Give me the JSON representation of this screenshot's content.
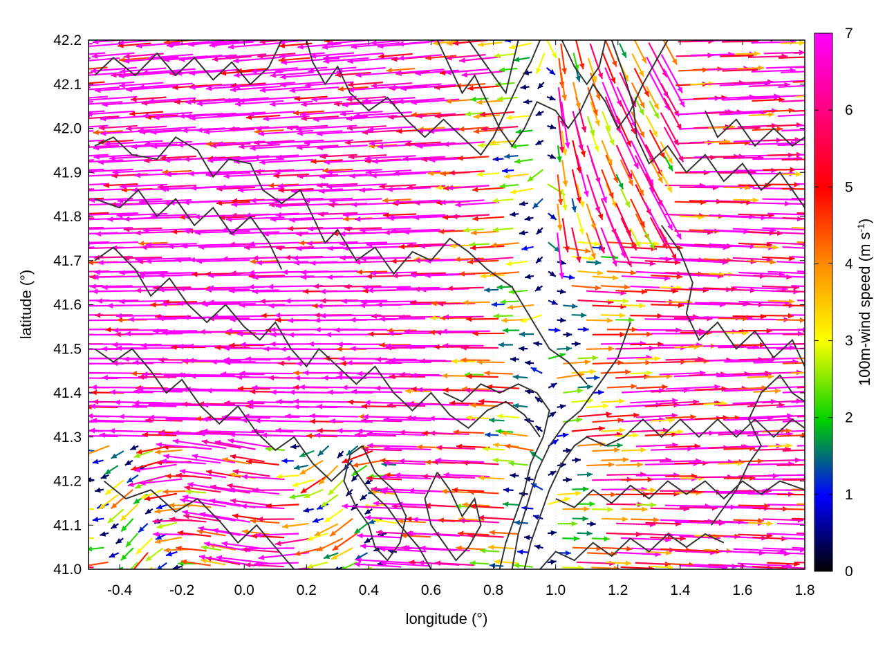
{
  "chart_data": {
    "type": "vector-field",
    "xlabel": "longitude (°)",
    "ylabel": "latitude (°)",
    "xlim": [
      -0.5,
      1.8
    ],
    "ylim": [
      41.0,
      42.2
    ],
    "xticks": [
      "-0.4",
      "-0.2",
      "0.0",
      "0.2",
      "0.4",
      "0.6",
      "0.8",
      "1.0",
      "1.2",
      "1.4",
      "1.6",
      "1.8"
    ],
    "xtick_values": [
      -0.4,
      -0.2,
      0.0,
      0.2,
      0.4,
      0.6,
      0.8,
      1.0,
      1.2,
      1.4,
      1.6,
      1.8
    ],
    "yticks": [
      "41.0",
      "41.1",
      "41.2",
      "41.3",
      "41.4",
      "41.5",
      "41.6",
      "41.7",
      "41.8",
      "41.9",
      "42.0",
      "42.1",
      "42.2"
    ],
    "ytick_values": [
      41.0,
      41.1,
      41.2,
      41.3,
      41.4,
      41.5,
      41.6,
      41.7,
      41.8,
      41.9,
      42.0,
      42.1,
      42.2
    ],
    "grid": true,
    "colorbar": {
      "label_main": "100m-wind speed (m s",
      "label_sup": "-1",
      "label_end": ")",
      "range": [
        0,
        7
      ],
      "ticks": [
        "0",
        "1",
        "2",
        "3",
        "4",
        "5",
        "6",
        "7"
      ],
      "tick_values": [
        0,
        1,
        2,
        3,
        4,
        5,
        6,
        7
      ],
      "colors": [
        "#000000",
        "#0000ff",
        "#00d000",
        "#ffff00",
        "#ff8c00",
        "#ff0000",
        "#ff00ff"
      ]
    },
    "contours": {
      "color": "#333333",
      "paths": [
        [
          [
            -0.48,
            41.96
          ],
          [
            -0.42,
            41.98
          ],
          [
            -0.36,
            41.94
          ],
          [
            -0.28,
            41.93
          ],
          [
            -0.22,
            41.98
          ],
          [
            -0.15,
            41.95
          ],
          [
            -0.1,
            41.89
          ],
          [
            -0.05,
            41.93
          ],
          [
            0.02,
            41.92
          ],
          [
            0.06,
            41.86
          ],
          [
            0.12,
            41.83
          ],
          [
            0.18,
            41.86
          ],
          [
            0.22,
            41.8
          ],
          [
            0.26,
            41.74
          ],
          [
            0.3,
            41.77
          ],
          [
            0.36,
            41.7
          ],
          [
            0.42,
            41.73
          ],
          [
            0.48,
            41.67
          ],
          [
            0.54,
            41.72
          ],
          [
            0.6,
            41.7
          ],
          [
            0.66,
            41.75
          ],
          [
            0.72,
            41.72
          ],
          [
            0.78,
            41.68
          ],
          [
            0.86,
            41.64
          ],
          [
            0.92,
            41.57
          ],
          [
            0.98,
            41.5
          ],
          [
            1.04,
            41.47
          ],
          [
            1.1,
            41.42
          ]
        ],
        [
          [
            -0.48,
            41.7
          ],
          [
            -0.42,
            41.73
          ],
          [
            -0.35,
            41.68
          ],
          [
            -0.3,
            41.62
          ],
          [
            -0.24,
            41.66
          ],
          [
            -0.18,
            41.6
          ],
          [
            -0.12,
            41.56
          ],
          [
            -0.06,
            41.6
          ],
          [
            0.0,
            41.55
          ],
          [
            0.05,
            41.52
          ],
          [
            0.1,
            41.56
          ],
          [
            0.15,
            41.5
          ],
          [
            0.2,
            41.46
          ],
          [
            0.24,
            41.5
          ],
          [
            0.3,
            41.46
          ],
          [
            0.36,
            41.42
          ],
          [
            0.42,
            41.46
          ],
          [
            0.48,
            41.4
          ],
          [
            0.54,
            41.36
          ],
          [
            0.6,
            41.4
          ],
          [
            0.66,
            41.35
          ],
          [
            0.72,
            41.32
          ],
          [
            0.78,
            41.36
          ],
          [
            0.84,
            41.38
          ],
          [
            0.9,
            41.35
          ],
          [
            0.95,
            41.3
          ]
        ],
        [
          [
            -0.48,
            41.5
          ],
          [
            -0.42,
            41.47
          ],
          [
            -0.36,
            41.5
          ],
          [
            -0.3,
            41.45
          ],
          [
            -0.25,
            41.4
          ],
          [
            -0.2,
            41.43
          ],
          [
            -0.14,
            41.37
          ],
          [
            -0.08,
            41.33
          ],
          [
            -0.02,
            41.37
          ],
          [
            0.04,
            41.31
          ],
          [
            0.1,
            41.27
          ],
          [
            0.16,
            41.3
          ],
          [
            0.22,
            41.24
          ],
          [
            0.28,
            41.2
          ],
          [
            0.34,
            41.24
          ],
          [
            0.4,
            41.18
          ],
          [
            0.46,
            41.14
          ],
          [
            0.5,
            41.1
          ],
          [
            0.56,
            41.05
          ],
          [
            0.6,
            41.0
          ]
        ],
        [
          [
            -0.45,
            41.2
          ],
          [
            -0.38,
            41.16
          ],
          [
            -0.3,
            41.18
          ],
          [
            -0.22,
            41.13
          ],
          [
            -0.15,
            41.16
          ],
          [
            -0.08,
            41.11
          ],
          [
            -0.02,
            41.06
          ],
          [
            0.04,
            41.1
          ],
          [
            0.1,
            41.05
          ],
          [
            0.16,
            41.0
          ]
        ],
        [
          [
            0.2,
            42.2
          ],
          [
            0.22,
            42.15
          ],
          [
            0.26,
            42.1
          ],
          [
            0.3,
            42.14
          ],
          [
            0.34,
            42.08
          ],
          [
            0.4,
            42.04
          ],
          [
            0.46,
            42.07
          ],
          [
            0.52,
            42.02
          ],
          [
            0.58,
            41.98
          ],
          [
            0.64,
            42.02
          ],
          [
            0.7,
            41.98
          ],
          [
            0.76,
            41.94
          ],
          [
            0.8,
            41.98
          ],
          [
            0.84,
            42.04
          ],
          [
            0.88,
            42.1
          ],
          [
            0.92,
            42.15
          ],
          [
            0.95,
            42.2
          ]
        ],
        [
          [
            0.62,
            42.2
          ],
          [
            0.66,
            42.14
          ],
          [
            0.7,
            42.08
          ],
          [
            0.74,
            42.12
          ],
          [
            0.78,
            42.06
          ],
          [
            0.82,
            42.0
          ],
          [
            0.86,
            41.96
          ],
          [
            0.9,
            42.0
          ],
          [
            0.94,
            42.06
          ],
          [
            1.0,
            42.04
          ],
          [
            1.04,
            42.0
          ],
          [
            1.08,
            42.04
          ],
          [
            1.12,
            42.1
          ],
          [
            1.16,
            42.06
          ],
          [
            1.2,
            42.0
          ],
          [
            1.24,
            42.04
          ],
          [
            1.28,
            42.1
          ],
          [
            1.32,
            42.15
          ],
          [
            1.36,
            42.2
          ]
        ],
        [
          [
            1.18,
            42.2
          ],
          [
            1.22,
            42.12
          ],
          [
            1.25,
            42.05
          ],
          [
            1.26,
            41.98
          ],
          [
            1.3,
            41.92
          ],
          [
            1.36,
            41.96
          ],
          [
            1.42,
            41.9
          ],
          [
            1.48,
            41.94
          ],
          [
            1.54,
            41.88
          ],
          [
            1.6,
            41.92
          ],
          [
            1.66,
            41.86
          ],
          [
            1.72,
            41.9
          ],
          [
            1.78,
            41.84
          ],
          [
            1.8,
            41.82
          ]
        ],
        [
          [
            1.34,
            41.78
          ],
          [
            1.4,
            41.72
          ],
          [
            1.44,
            41.65
          ],
          [
            1.42,
            41.58
          ],
          [
            1.46,
            41.52
          ],
          [
            1.52,
            41.56
          ],
          [
            1.58,
            41.5
          ],
          [
            1.64,
            41.54
          ],
          [
            1.7,
            41.48
          ],
          [
            1.76,
            41.52
          ],
          [
            1.8,
            41.46
          ]
        ],
        [
          [
            0.9,
            41.0
          ],
          [
            0.92,
            41.06
          ],
          [
            0.95,
            41.12
          ],
          [
            0.98,
            41.18
          ],
          [
            1.02,
            41.24
          ],
          [
            1.06,
            41.28
          ],
          [
            1.1,
            41.3
          ],
          [
            1.16,
            41.28
          ],
          [
            1.22,
            41.3
          ],
          [
            1.28,
            41.34
          ],
          [
            1.34,
            41.3
          ],
          [
            1.4,
            41.34
          ],
          [
            1.46,
            41.3
          ],
          [
            1.52,
            41.34
          ],
          [
            1.58,
            41.3
          ],
          [
            1.64,
            41.34
          ],
          [
            1.7,
            41.3
          ],
          [
            1.76,
            41.34
          ],
          [
            1.8,
            41.32
          ]
        ],
        [
          [
            0.86,
            41.0
          ],
          [
            0.88,
            41.08
          ],
          [
            0.91,
            41.15
          ],
          [
            0.94,
            41.22
          ],
          [
            0.98,
            41.28
          ],
          [
            1.03,
            41.33
          ],
          [
            1.08,
            41.36
          ],
          [
            1.12,
            41.4
          ],
          [
            1.16,
            41.44
          ],
          [
            1.2,
            41.48
          ],
          [
            1.22,
            41.52
          ],
          [
            1.24,
            41.56
          ]
        ],
        [
          [
            0.82,
            41.0
          ],
          [
            0.84,
            41.06
          ],
          [
            0.87,
            41.12
          ],
          [
            0.9,
            41.18
          ],
          [
            0.92,
            41.24
          ],
          [
            0.96,
            41.3
          ],
          [
            0.98,
            41.36
          ],
          [
            0.94,
            41.4
          ],
          [
            0.88,
            41.42
          ],
          [
            0.82,
            41.4
          ],
          [
            0.76,
            41.42
          ],
          [
            0.7,
            41.38
          ],
          [
            0.64,
            41.4
          ]
        ],
        [
          [
            1.0,
            41.16
          ],
          [
            1.06,
            41.14
          ],
          [
            1.12,
            41.18
          ],
          [
            1.18,
            41.15
          ],
          [
            1.24,
            41.19
          ],
          [
            1.3,
            41.16
          ],
          [
            1.36,
            41.2
          ],
          [
            1.42,
            41.17
          ],
          [
            1.48,
            41.2
          ],
          [
            1.54,
            41.16
          ],
          [
            1.6,
            41.2
          ],
          [
            1.66,
            41.17
          ],
          [
            1.72,
            41.2
          ],
          [
            1.8,
            41.18
          ]
        ],
        [
          [
            0.95,
            41.0
          ],
          [
            1.0,
            41.04
          ],
          [
            1.06,
            41.02
          ],
          [
            1.12,
            41.06
          ],
          [
            1.18,
            41.03
          ],
          [
            1.24,
            41.07
          ],
          [
            1.3,
            41.04
          ],
          [
            1.36,
            41.08
          ],
          [
            1.42,
            41.05
          ],
          [
            1.48,
            41.08
          ],
          [
            1.54,
            41.06
          ]
        ],
        [
          [
            0.38,
            41.28
          ],
          [
            0.42,
            41.22
          ],
          [
            0.48,
            41.18
          ],
          [
            0.52,
            41.12
          ],
          [
            0.5,
            41.06
          ],
          [
            0.46,
            41.02
          ],
          [
            0.42,
            41.05
          ],
          [
            0.4,
            41.1
          ],
          [
            0.36,
            41.14
          ],
          [
            0.32,
            41.2
          ],
          [
            0.34,
            41.26
          ],
          [
            0.38,
            41.28
          ]
        ],
        [
          [
            0.62,
            41.22
          ],
          [
            0.66,
            41.18
          ],
          [
            0.7,
            41.12
          ],
          [
            0.74,
            41.16
          ],
          [
            0.76,
            41.1
          ],
          [
            0.72,
            41.05
          ],
          [
            0.68,
            41.02
          ],
          [
            0.64,
            41.06
          ],
          [
            0.6,
            41.1
          ],
          [
            0.58,
            41.16
          ],
          [
            0.62,
            41.22
          ]
        ],
        [
          [
            -0.48,
            42.12
          ],
          [
            -0.42,
            42.16
          ],
          [
            -0.35,
            42.12
          ],
          [
            -0.28,
            42.17
          ],
          [
            -0.22,
            42.12
          ],
          [
            -0.16,
            42.16
          ],
          [
            -0.1,
            42.11
          ],
          [
            -0.04,
            42.15
          ],
          [
            0.02,
            42.1
          ],
          [
            0.08,
            42.14
          ],
          [
            0.12,
            42.2
          ]
        ],
        [
          [
            -0.48,
            41.84
          ],
          [
            -0.4,
            41.82
          ],
          [
            -0.34,
            41.86
          ],
          [
            -0.28,
            41.8
          ],
          [
            -0.22,
            41.84
          ],
          [
            -0.16,
            41.78
          ],
          [
            -0.1,
            41.82
          ],
          [
            -0.04,
            41.76
          ],
          [
            0.02,
            41.8
          ],
          [
            0.08,
            41.74
          ],
          [
            0.12,
            41.68
          ]
        ],
        [
          [
            1.5,
            41.1
          ],
          [
            1.54,
            41.14
          ],
          [
            1.58,
            41.18
          ],
          [
            1.62,
            41.24
          ],
          [
            1.66,
            41.28
          ],
          [
            1.62,
            41.34
          ],
          [
            1.66,
            41.4
          ],
          [
            1.72,
            41.44
          ],
          [
            1.76,
            41.4
          ],
          [
            1.8,
            41.38
          ]
        ],
        [
          [
            1.48,
            42.04
          ],
          [
            1.52,
            41.98
          ],
          [
            1.58,
            42.02
          ],
          [
            1.64,
            41.96
          ],
          [
            1.7,
            42.0
          ],
          [
            1.76,
            41.96
          ],
          [
            1.8,
            41.98
          ]
        ],
        [
          [
            0.72,
            42.2
          ],
          [
            0.76,
            42.16
          ],
          [
            0.8,
            42.12
          ],
          [
            0.84,
            42.08
          ],
          [
            0.86,
            42.14
          ],
          [
            0.88,
            42.2
          ]
        ],
        [
          [
            1.02,
            42.2
          ],
          [
            1.06,
            42.14
          ],
          [
            1.1,
            42.1
          ],
          [
            1.14,
            42.14
          ],
          [
            1.16,
            42.2
          ]
        ]
      ]
    }
  }
}
